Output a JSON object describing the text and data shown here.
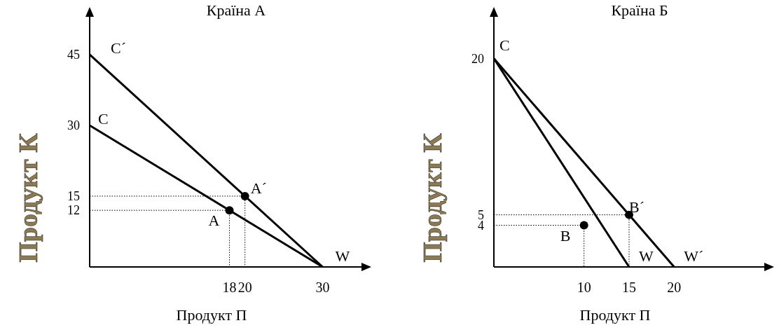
{
  "chart_data": [
    {
      "type": "line",
      "title": "Країна А",
      "xlabel": "Продукт П",
      "ylabel": "Продукт К",
      "xlim": [
        0,
        35
      ],
      "ylim": [
        0,
        53
      ],
      "xticks": [
        18,
        20,
        30
      ],
      "yticks": [
        12,
        15,
        30,
        45
      ],
      "grid": false,
      "line_style": "solid",
      "series": [
        {
          "type": "line",
          "color": "#000000",
          "x": [
            0,
            30
          ],
          "values": [
            45,
            0
          ],
          "marker": "none"
        },
        {
          "type": "line",
          "color": "#000000",
          "x": [
            0,
            30
          ],
          "values": [
            30,
            0
          ],
          "marker": "none"
        },
        {
          "type": "line",
          "color": "#000000",
          "x": [
            0,
            18,
            18
          ],
          "values": [
            12,
            12,
            0
          ],
          "marker": "none",
          "line_style": "dotted"
        },
        {
          "type": "line",
          "color": "#000000",
          "x": [
            0,
            20,
            20
          ],
          "values": [
            15,
            15,
            0
          ],
          "marker": "none",
          "line_style": "dotted"
        },
        {
          "type": "scatter",
          "color": "#000000",
          "x": [
            18,
            20
          ],
          "values": [
            12,
            15
          ],
          "marker": "circle"
        }
      ],
      "annotations": [
        {
          "text": "C´",
          "x": 0,
          "y": 45
        },
        {
          "text": "C",
          "x": 0,
          "y": 30
        },
        {
          "text": "W",
          "x": 30,
          "y": 0
        },
        {
          "text": "A",
          "x": 18,
          "y": 12
        },
        {
          "text": "A´",
          "x": 20,
          "y": 15
        }
      ]
    },
    {
      "type": "line",
      "title": "Країна Б",
      "xlabel": "Продукт П",
      "ylabel": "Продукт К",
      "xlim": [
        0,
        30
      ],
      "ylim": [
        0,
        24
      ],
      "xticks": [
        10,
        15,
        20
      ],
      "yticks": [
        4,
        5,
        20
      ],
      "grid": false,
      "line_style": "solid",
      "series": [
        {
          "type": "line",
          "color": "#000000",
          "x": [
            0,
            15
          ],
          "values": [
            20,
            0
          ],
          "marker": "none"
        },
        {
          "type": "line",
          "color": "#000000",
          "x": [
            0,
            20
          ],
          "values": [
            20,
            0
          ],
          "marker": "none"
        },
        {
          "type": "line",
          "color": "#000000",
          "x": [
            0,
            10,
            10
          ],
          "values": [
            4,
            4,
            0
          ],
          "marker": "none",
          "line_style": "dotted"
        },
        {
          "type": "line",
          "color": "#000000",
          "x": [
            0,
            15,
            15
          ],
          "values": [
            5,
            5,
            0
          ],
          "marker": "none",
          "line_style": "dotted"
        },
        {
          "type": "scatter",
          "color": "#000000",
          "x": [
            10,
            15
          ],
          "values": [
            4,
            5
          ],
          "marker": "circle"
        }
      ],
      "annotations": [
        {
          "text": "C",
          "x": 0,
          "y": 20
        },
        {
          "text": "W",
          "x": 15,
          "y": 0
        },
        {
          "text": "W´",
          "x": 20,
          "y": 0
        },
        {
          "text": "B",
          "x": 10,
          "y": 4
        },
        {
          "text": "B´",
          "x": 15,
          "y": 5
        }
      ]
    }
  ]
}
